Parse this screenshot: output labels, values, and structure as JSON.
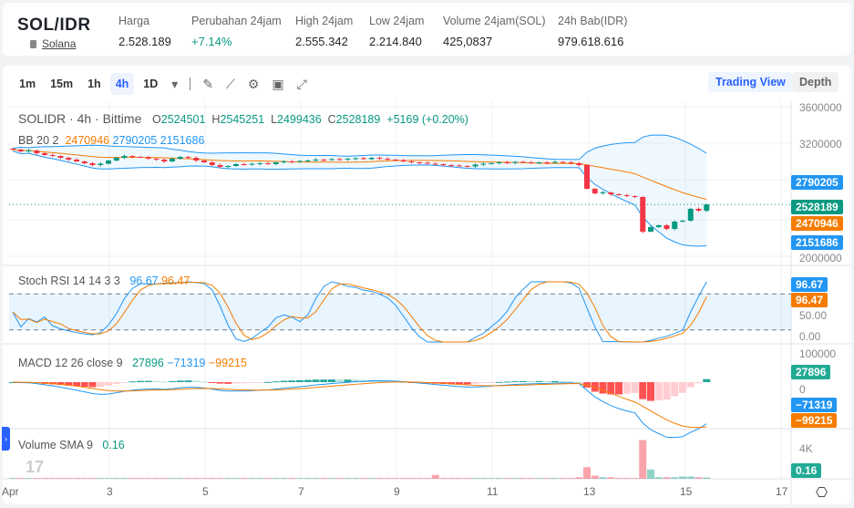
{
  "header": {
    "symbol": "SOL/IDR",
    "coin": "Solana",
    "stats": [
      {
        "label": "Harga",
        "value": "2.528.189"
      },
      {
        "label": "Perubahan 24jam",
        "value": "+7.14%"
      },
      {
        "label": "High 24jam",
        "value": "2.555.342"
      },
      {
        "label": "Low 24jam",
        "value": "2.214.840"
      },
      {
        "label": "Volume 24jam(SOL)",
        "value": "425,0837"
      },
      {
        "label": "24h Bab(IDR)",
        "value": "979.618.616"
      }
    ]
  },
  "toolbar": {
    "intervals": [
      "1m",
      "15m",
      "1h",
      "4h",
      "1D"
    ],
    "active": "4h",
    "trading_view": "Trading View",
    "depth": "Depth"
  },
  "legend": {
    "title": "SOLIDR · 4h · Bittime",
    "o": "O",
    "o_val": "2524501",
    "h": "H",
    "h_val": "2545251",
    "l": "L",
    "l_val": "2499436",
    "c": "C",
    "c_val": "2528189",
    "change": "+5169 (+0.20%)",
    "bb": "BB 20 2",
    "bb_basis": "2470946",
    "bb_upper": "2790205",
    "bb_lower": "2151686",
    "stoch": "Stoch RSI 14 14 3 3",
    "stoch_k": "96.67",
    "stoch_d": "96.47",
    "macd": "MACD 12 26 close 9",
    "macd_hist": "27896",
    "macd_line": "−71319",
    "macd_signal": "−99215",
    "vol": "Volume SMA 9",
    "vol_val": "0.16"
  },
  "axes": {
    "price": [
      "3600000",
      "3200000",
      "2000000"
    ],
    "stoch": [
      "50.00",
      "0.00"
    ],
    "macd": [
      "100000",
      "0"
    ],
    "volume": [
      "4K"
    ],
    "x": [
      "Apr",
      "3",
      "5",
      "7",
      "9",
      "11",
      "13",
      "15",
      "17"
    ]
  },
  "colors": {
    "up": "#089981",
    "down": "#f23645",
    "bb": "#2196f3",
    "basis": "#f57c00"
  },
  "chart_data": {
    "type": "candlestick",
    "unit": "thousand IDR",
    "interval": "4h",
    "closes": [
      3130,
      3110,
      3120,
      3090,
      3070,
      3060,
      3040,
      3020,
      3000,
      2980,
      2960,
      2975,
      3010,
      3040,
      3060,
      3050,
      3045,
      3030,
      3020,
      3000,
      3030,
      3050,
      3040,
      3010,
      2990,
      2960,
      2940,
      2950,
      2970,
      2965,
      2975,
      2980,
      2970,
      2990,
      3000,
      2995,
      3005,
      3010,
      3020,
      3015,
      3025,
      3020,
      3030,
      3035,
      3025,
      3040,
      3030,
      3020,
      3015,
      3000,
      2990,
      2985,
      2975,
      2970,
      2960,
      2955,
      2950,
      2945,
      2965,
      2975,
      2980,
      2990,
      2985,
      2995,
      2990,
      2985,
      2990,
      2985,
      2995,
      2990,
      2980,
      2960,
      2700,
      2650,
      2660,
      2640,
      2630,
      2620,
      2610,
      2230,
      2280,
      2300,
      2260,
      2340,
      2350,
      2480,
      2460,
      2528
    ],
    "volumes": [
      0.1,
      0.1,
      0.1,
      0.1,
      0.1,
      0.1,
      0.1,
      0.1,
      0.1,
      0.1,
      0.1,
      0.1,
      0.1,
      0.1,
      0.1,
      0.1,
      0.1,
      0.1,
      0.1,
      0.1,
      0.1,
      0.1,
      0.1,
      0.1,
      0.1,
      0.1,
      0.1,
      0.1,
      0.1,
      0.1,
      0.1,
      0.1,
      0.1,
      0.1,
      0.1,
      0.1,
      0.1,
      0.1,
      0.1,
      0.1,
      0.1,
      0.1,
      0.1,
      0.1,
      0.1,
      0.1,
      0.1,
      0.1,
      0.1,
      0.1,
      0.1,
      0.1,
      0.1,
      0.5,
      0.1,
      0.1,
      0.1,
      0.1,
      0.1,
      0.1,
      0.1,
      0.1,
      0.1,
      0.1,
      0.1,
      0.1,
      0.1,
      0.1,
      0.1,
      0.1,
      0.1,
      0.2,
      1.5,
      0.4,
      0.2,
      0.2,
      0.1,
      0.1,
      0.1,
      5,
      1.2,
      0.2,
      0.2,
      0.2,
      0.3,
      0.3,
      0.2,
      0.16
    ]
  }
}
